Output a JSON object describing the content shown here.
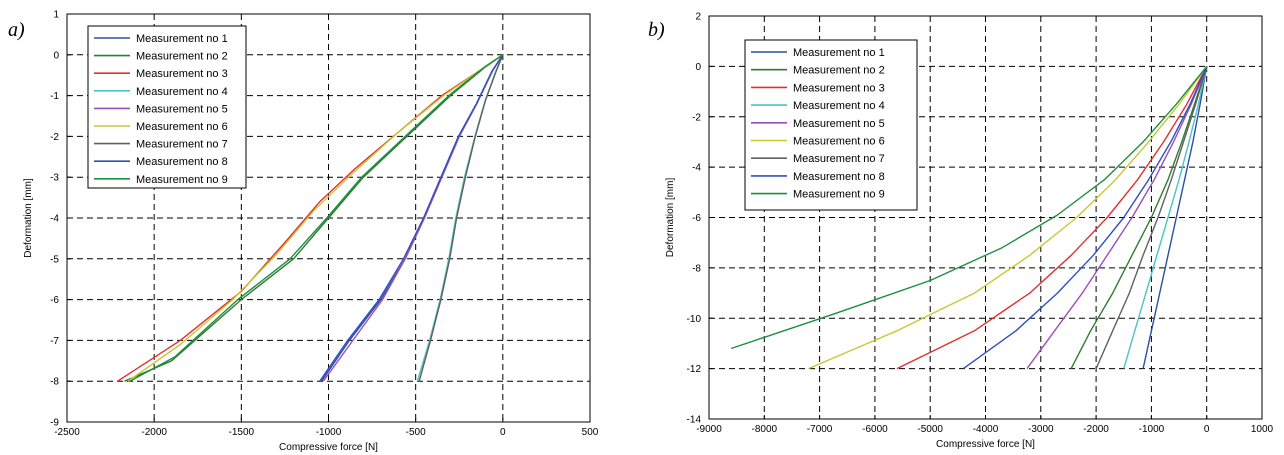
{
  "chart_data": [
    {
      "type": "line",
      "panel_label": "a)",
      "xlabel": "Compressive force [N]",
      "ylabel": "Deformation [mm]",
      "xlim": [
        -2500,
        500
      ],
      "ylim": [
        -9,
        1
      ],
      "xticks": [
        -2500,
        -2000,
        -1500,
        -1000,
        -500,
        0,
        500
      ],
      "yticks": [
        -9,
        -8,
        -7,
        -6,
        -5,
        -4,
        -3,
        -2,
        -1,
        0,
        1
      ],
      "grid": true,
      "legend_position": "top-left",
      "series": [
        {
          "name": "Measurement no 1",
          "color": "#2b4fa6",
          "x": [
            -1040,
            -880,
            -700,
            -560,
            -450,
            -350,
            -250,
            -150,
            -60,
            0
          ],
          "y": [
            -8,
            -7,
            -6,
            -5,
            -4,
            -3,
            -2,
            -1.2,
            -0.4,
            0
          ]
        },
        {
          "name": "Measurement no 2",
          "color": "#2e7d32",
          "x": [
            -2170,
            -1900,
            -1500,
            -1200,
            -1000,
            -800,
            -550,
            -300,
            -100,
            0
          ],
          "y": [
            -8,
            -7.5,
            -6,
            -5,
            -4,
            -3,
            -2,
            -1,
            -0.3,
            0
          ]
        },
        {
          "name": "Measurement no 3",
          "color": "#e03030",
          "x": [
            -2210,
            -1850,
            -1500,
            -1250,
            -1050,
            -850,
            -600,
            -350,
            -120,
            0
          ],
          "y": [
            -8,
            -7,
            -5.8,
            -4.6,
            -3.6,
            -2.8,
            -1.9,
            -1,
            -0.35,
            0
          ]
        },
        {
          "name": "Measurement no 4",
          "color": "#4cc3c3",
          "x": [
            -490,
            -420,
            -360,
            -310,
            -270,
            -220,
            -160,
            -100,
            -40,
            0
          ],
          "y": [
            -8,
            -7,
            -6,
            -5,
            -4,
            -3,
            -2,
            -1.1,
            -0.4,
            0
          ]
        },
        {
          "name": "Measurement no 5",
          "color": "#9b4fb5",
          "x": [
            -1030,
            -860,
            -690,
            -560,
            -450,
            -350,
            -250,
            -150,
            -60,
            0
          ],
          "y": [
            -8,
            -7,
            -6,
            -5,
            -4,
            -3,
            -2,
            -1.2,
            -0.4,
            0
          ]
        },
        {
          "name": "Measurement no 6",
          "color": "#c8c832",
          "x": [
            -2150,
            -1850,
            -1550,
            -1300,
            -1080,
            -860,
            -600,
            -340,
            -110,
            0
          ],
          "y": [
            -8,
            -7.1,
            -6,
            -4.9,
            -3.8,
            -2.9,
            -1.9,
            -1,
            -0.32,
            0
          ]
        },
        {
          "name": "Measurement no 7",
          "color": "#606060",
          "x": [
            -480,
            -415,
            -355,
            -305,
            -265,
            -215,
            -158,
            -98,
            -38,
            0
          ],
          "y": [
            -8,
            -7,
            -6,
            -5,
            -4,
            -3,
            -2,
            -1.1,
            -0.4,
            0
          ]
        },
        {
          "name": "Measurement no 8",
          "color": "#3050c0",
          "x": [
            -1050,
            -890,
            -710,
            -570,
            -455,
            -355,
            -255,
            -152,
            -62,
            0
          ],
          "y": [
            -8,
            -7,
            -6,
            -5,
            -4,
            -3,
            -2,
            -1.2,
            -0.4,
            0
          ]
        },
        {
          "name": "Measurement no 9",
          "color": "#1f8f3f",
          "x": [
            -2140,
            -1880,
            -1520,
            -1220,
            -1010,
            -810,
            -560,
            -310,
            -105,
            0
          ],
          "y": [
            -8,
            -7.4,
            -6,
            -5,
            -4,
            -3,
            -2,
            -1,
            -0.3,
            0
          ]
        }
      ]
    },
    {
      "type": "line",
      "panel_label": "b)",
      "xlabel": "Compressive force [N]",
      "ylabel": "Deformation [mm]",
      "xlim": [
        -9000,
        1000
      ],
      "ylim": [
        -14,
        2
      ],
      "xticks": [
        -9000,
        -8000,
        -7000,
        -6000,
        -5000,
        -4000,
        -3000,
        -2000,
        -1000,
        0,
        1000
      ],
      "yticks": [
        -14,
        -12,
        -10,
        -8,
        -6,
        -4,
        -2,
        0,
        2
      ],
      "grid": true,
      "legend_position": "top-left",
      "series": [
        {
          "name": "Measurement no 1",
          "color": "#2b4fa6",
          "x": [
            -1150,
            -1000,
            -850,
            -700,
            -550,
            -400,
            -250,
            -120,
            0
          ],
          "y": [
            -12,
            -10.5,
            -9,
            -7.5,
            -6,
            -4.5,
            -3,
            -1.5,
            0
          ]
        },
        {
          "name": "Measurement no 2",
          "color": "#2e7d32",
          "x": [
            -2450,
            -2100,
            -1700,
            -1350,
            -1000,
            -700,
            -450,
            -220,
            0
          ],
          "y": [
            -12,
            -10.5,
            -9,
            -7.5,
            -6,
            -4.5,
            -3,
            -1.5,
            0
          ]
        },
        {
          "name": "Measurement no 3",
          "color": "#e03030",
          "x": [
            -5600,
            -4200,
            -3200,
            -2450,
            -1800,
            -1250,
            -780,
            -360,
            0
          ],
          "y": [
            -12,
            -10.5,
            -9,
            -7.5,
            -6,
            -4.5,
            -3,
            -1.5,
            0
          ]
        },
        {
          "name": "Measurement no 4",
          "color": "#4cc3c3",
          "x": [
            -1500,
            -1300,
            -1100,
            -900,
            -700,
            -500,
            -320,
            -150,
            0
          ],
          "y": [
            -12,
            -10.5,
            -9,
            -7.5,
            -6,
            -4.5,
            -3,
            -1.5,
            0
          ]
        },
        {
          "name": "Measurement no 5",
          "color": "#9b4fb5",
          "x": [
            -3250,
            -2750,
            -2250,
            -1800,
            -1350,
            -950,
            -600,
            -280,
            0
          ],
          "y": [
            -12,
            -10.5,
            -9,
            -7.5,
            -6,
            -4.5,
            -3,
            -1.5,
            0
          ]
        },
        {
          "name": "Measurement no 6",
          "color": "#c8c832",
          "x": [
            -7200,
            -5600,
            -4200,
            -3200,
            -2350,
            -1650,
            -1050,
            -500,
            0
          ],
          "y": [
            -12,
            -10.5,
            -9,
            -7.5,
            -6,
            -4.5,
            -3,
            -1.5,
            0
          ]
        },
        {
          "name": "Measurement no 7",
          "color": "#606060",
          "x": [
            -2000,
            -1700,
            -1400,
            -1150,
            -880,
            -640,
            -420,
            -200,
            0
          ],
          "y": [
            -12,
            -10.5,
            -9,
            -7.5,
            -6,
            -4.5,
            -3,
            -1.5,
            0
          ]
        },
        {
          "name": "Measurement no 8",
          "color": "#3050c0",
          "x": [
            -4400,
            -3450,
            -2700,
            -2050,
            -1500,
            -1050,
            -650,
            -300,
            0
          ],
          "y": [
            -12,
            -10.5,
            -9,
            -7.5,
            -6,
            -4.5,
            -3,
            -1.5,
            0
          ]
        },
        {
          "name": "Measurement no 9",
          "color": "#1f8f3f",
          "x": [
            -8600,
            -6700,
            -5000,
            -3700,
            -2700,
            -1850,
            -1150,
            -550,
            0
          ],
          "y": [
            -11.2,
            -9.8,
            -8.5,
            -7.2,
            -5.9,
            -4.5,
            -3,
            -1.5,
            0
          ]
        }
      ]
    }
  ]
}
